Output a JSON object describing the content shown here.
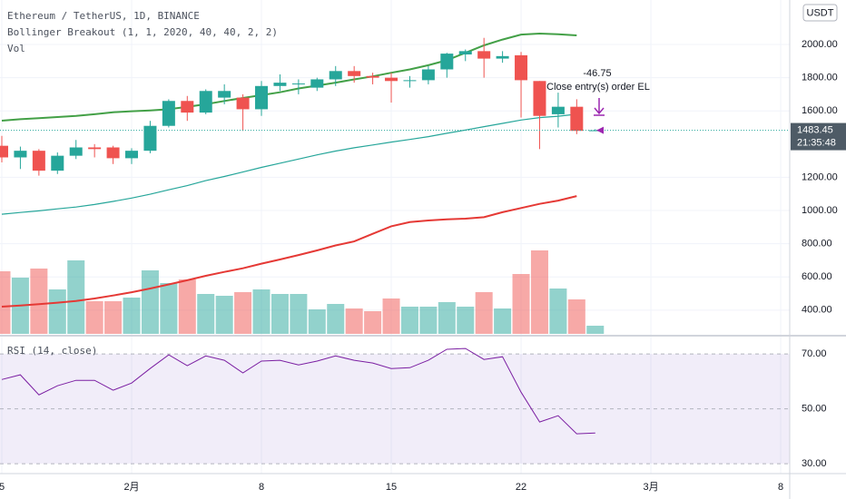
{
  "chart_data": {
    "type": "candlestick",
    "title": "Ethereum / TetherUS, 1D, BINANCE",
    "subtitle": "Bollinger Breakout (1, 1, 2020, 40, 40, 2, 2)",
    "volume_label": "Vol",
    "currency": "USDT",
    "categories": [
      "5",
      null,
      null,
      null,
      null,
      null,
      null,
      "2月",
      null,
      null,
      null,
      null,
      null,
      null,
      "8",
      null,
      null,
      null,
      null,
      null,
      null,
      "15",
      null,
      null,
      null,
      null,
      null,
      null,
      "22",
      null,
      null,
      null,
      null,
      null,
      null,
      "3月",
      null,
      null,
      null,
      null,
      null,
      null,
      "8"
    ],
    "open": [
      1390,
      1320,
      1360,
      1240,
      1330,
      1380,
      1380,
      1315,
      1360,
      1510,
      1660,
      1590,
      1680,
      1680,
      1610,
      1750,
      1760,
      1740,
      1790,
      1840,
      1810,
      1800,
      1780,
      1785,
      1850,
      1940,
      1960,
      1915,
      1935,
      1780,
      1580,
      1625,
      1480,
      null,
      null,
      null,
      null,
      null,
      null,
      null,
      null,
      null,
      null
    ],
    "high": [
      1450,
      1385,
      1370,
      1350,
      1425,
      1400,
      1390,
      1375,
      1540,
      1670,
      1690,
      1730,
      1760,
      1700,
      1780,
      1820,
      1790,
      1800,
      1870,
      1870,
      1830,
      1830,
      1810,
      1870,
      1950,
      1970,
      2040,
      1960,
      1955,
      1780,
      1710,
      1670,
      1490,
      null,
      null,
      null,
      null,
      null,
      null,
      null,
      null,
      null,
      null
    ],
    "low": [
      1290,
      1250,
      1210,
      1220,
      1310,
      1320,
      1280,
      1280,
      1345,
      1500,
      1540,
      1580,
      1640,
      1480,
      1570,
      1720,
      1700,
      1720,
      1750,
      1770,
      1760,
      1650,
      1740,
      1760,
      1800,
      1900,
      1800,
      1890,
      1560,
      1370,
      1500,
      1460,
      1478,
      null,
      null,
      null,
      null,
      null,
      null,
      null,
      null,
      null,
      null
    ],
    "close": [
      1320,
      1360,
      1240,
      1330,
      1380,
      1370,
      1315,
      1360,
      1510,
      1660,
      1590,
      1720,
      1720,
      1610,
      1750,
      1770,
      1765,
      1790,
      1840,
      1810,
      1800,
      1780,
      1785,
      1850,
      1945,
      1960,
      1915,
      1930,
      1785,
      1570,
      1625,
      1480,
      1483.45,
      null,
      null,
      null,
      null,
      null,
      null,
      null,
      null,
      null,
      null
    ],
    "volume": [
      69,
      62,
      72,
      49,
      81,
      36,
      36,
      40,
      70,
      56,
      60,
      44,
      42,
      46,
      49,
      44,
      44,
      27,
      33,
      28,
      25,
      39,
      30,
      30,
      35,
      30,
      46,
      28,
      66,
      92,
      50,
      38,
      9,
      null,
      null,
      null,
      null,
      null,
      null,
      null,
      null,
      null,
      null
    ],
    "volume_ylim": [
      0,
      368
    ],
    "up_color": "#26a69a",
    "down_color": "#ef5350",
    "overlays": [
      {
        "color": "#43a047",
        "values": [
          1541,
          1550,
          1556,
          1563,
          1570,
          1580,
          1592,
          1598,
          1603,
          1610,
          1625,
          1640,
          1660,
          1678,
          1695,
          1712,
          1735,
          1752,
          1770,
          1790,
          1808,
          1830,
          1850,
          1875,
          1905,
          1950,
          1995,
          2030,
          2060,
          2066,
          2062,
          2055,
          null,
          null,
          null,
          null,
          null,
          null,
          null,
          null,
          null,
          null,
          null
        ]
      },
      {
        "color": "#26a69a",
        "values": [
          978,
          988,
          998,
          1010,
          1021,
          1036,
          1055,
          1075,
          1098,
          1125,
          1150,
          1180,
          1205,
          1232,
          1260,
          1285,
          1310,
          1335,
          1358,
          1378,
          1395,
          1412,
          1428,
          1445,
          1465,
          1485,
          1505,
          1525,
          1545,
          1560,
          1568,
          1580,
          null,
          null,
          null,
          null,
          null,
          null,
          null,
          null,
          null,
          null,
          null
        ]
      },
      {
        "color": "#e53935",
        "values": [
          421,
          428,
          436,
          445,
          455,
          470,
          488,
          508,
          530,
          555,
          580,
          607,
          630,
          652,
          680,
          705,
          732,
          760,
          790,
          814,
          860,
          905,
          930,
          940,
          947,
          951,
          960,
          990,
          1015,
          1040,
          1060,
          1087,
          null,
          null,
          null,
          null,
          null,
          null,
          null,
          null,
          null,
          null,
          null
        ]
      }
    ],
    "ylim": [
      257,
      2268
    ],
    "yticks": [
      {
        "value": 400,
        "label": "400.00"
      },
      {
        "value": 600,
        "label": "600.00"
      },
      {
        "value": 800,
        "label": "800.00"
      },
      {
        "value": 1000,
        "label": "1000.00"
      },
      {
        "value": 1200,
        "label": "1200.00"
      },
      {
        "value": 1600,
        "label": "1600.00"
      },
      {
        "value": 1800,
        "label": "1800.00"
      },
      {
        "value": 2000,
        "label": "2000.00"
      }
    ],
    "last_price": 1483.45,
    "countdown": "21:35:48",
    "annotations": [
      "-46.75",
      "Close entry(s) order EL"
    ],
    "rsi": {
      "label": "RSI (14, close)",
      "color": "#7b1fa2",
      "values": [
        60.7,
        62.4,
        55.1,
        58.4,
        60.4,
        60.4,
        56.8,
        59.4,
        64.7,
        69.7,
        65.7,
        69.3,
        67.7,
        63.1,
        67.4,
        67.7,
        66.0,
        67.4,
        69.3,
        67.7,
        66.7,
        64.7,
        65.0,
        67.7,
        71.7,
        72.0,
        68.0,
        69.0,
        56.1,
        45.2,
        47.5,
        40.9,
        41.2,
        null,
        null,
        null,
        null,
        null,
        null,
        null,
        null,
        null,
        null
      ],
      "ylim": [
        26.4,
        76
      ],
      "yticks": [
        {
          "value": 30,
          "label": "30.00"
        },
        {
          "value": 50,
          "label": "50.00"
        },
        {
          "value": 70,
          "label": "70.00"
        }
      ],
      "band": [
        30,
        70
      ]
    }
  }
}
